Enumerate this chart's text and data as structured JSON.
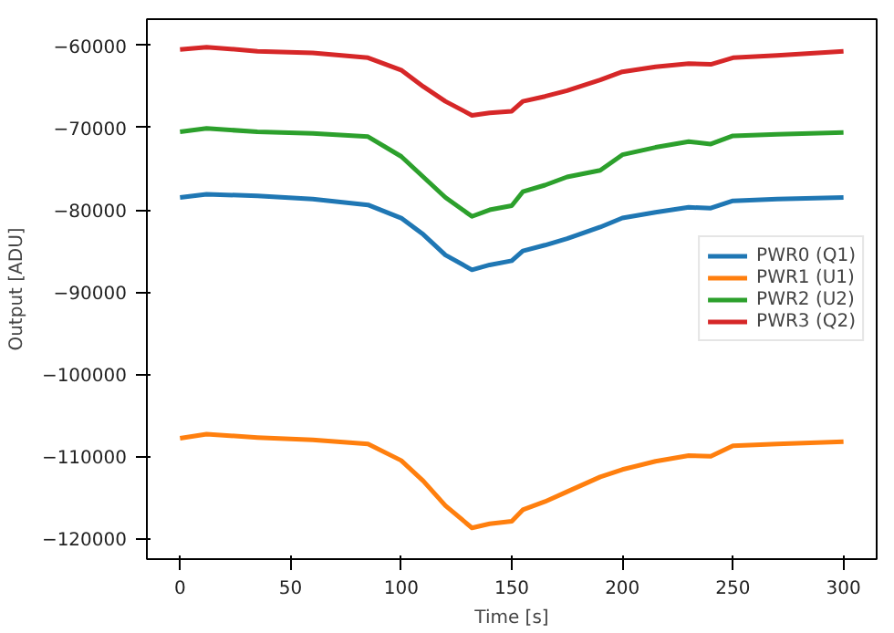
{
  "chart_data": {
    "type": "line",
    "xlabel": "Time [s]",
    "ylabel": "Output [ADU]",
    "x": [
      0,
      12,
      35,
      60,
      85,
      100,
      110,
      120,
      132,
      140,
      150,
      155,
      165,
      175,
      190,
      200,
      215,
      230,
      240,
      250,
      270,
      300
    ],
    "series": [
      {
        "name": "PWR0 (Q1)",
        "color": "#1f77b4",
        "values": [
          -78500,
          -78100,
          -78300,
          -78700,
          -79400,
          -81000,
          -83000,
          -85500,
          -87300,
          -86700,
          -86200,
          -85000,
          -84300,
          -83500,
          -82100,
          -81000,
          -80300,
          -79700,
          -79800,
          -78900,
          -78700,
          -78500
        ]
      },
      {
        "name": "PWR1 (U1)",
        "color": "#ff7f0e",
        "values": [
          -107800,
          -107300,
          -107700,
          -108000,
          -108500,
          -110500,
          -113000,
          -116000,
          -118700,
          -118200,
          -117900,
          -116500,
          -115500,
          -114300,
          -112500,
          -111600,
          -110600,
          -109900,
          -110000,
          -108700,
          -108500,
          -108200
        ]
      },
      {
        "name": "PWR2 (U2)",
        "color": "#2ca02c",
        "values": [
          -70500,
          -70100,
          -70500,
          -70700,
          -71100,
          -73500,
          -76000,
          -78500,
          -80800,
          -80000,
          -79500,
          -77800,
          -77000,
          -76000,
          -75200,
          -73300,
          -72400,
          -71700,
          -72000,
          -71000,
          -70800,
          -70600
        ]
      },
      {
        "name": "PWR3 (Q2)",
        "color": "#d62728",
        "values": [
          -60500,
          -60200,
          -60700,
          -60900,
          -61500,
          -63000,
          -65000,
          -66800,
          -68500,
          -68200,
          -68000,
          -66800,
          -66200,
          -65500,
          -64200,
          -63200,
          -62600,
          -62200,
          -62300,
          -61500,
          -61200,
          -60700
        ]
      }
    ],
    "xlim": [
      -15,
      315
    ],
    "ylim": [
      -122500,
      -56800
    ],
    "xticks": [
      0,
      50,
      100,
      150,
      200,
      250,
      300
    ],
    "yticks": [
      {
        "value": -60000,
        "label": "−60000"
      },
      {
        "value": -70000,
        "label": "−70000"
      },
      {
        "value": -80000,
        "label": "−80000"
      },
      {
        "value": -90000,
        "label": "−90000"
      },
      {
        "value": -100000,
        "label": "−100000"
      },
      {
        "value": -110000,
        "label": "−110000"
      },
      {
        "value": -120000,
        "label": "−120000"
      }
    ],
    "grid": false,
    "legend": "right",
    "line_style": "solid"
  }
}
